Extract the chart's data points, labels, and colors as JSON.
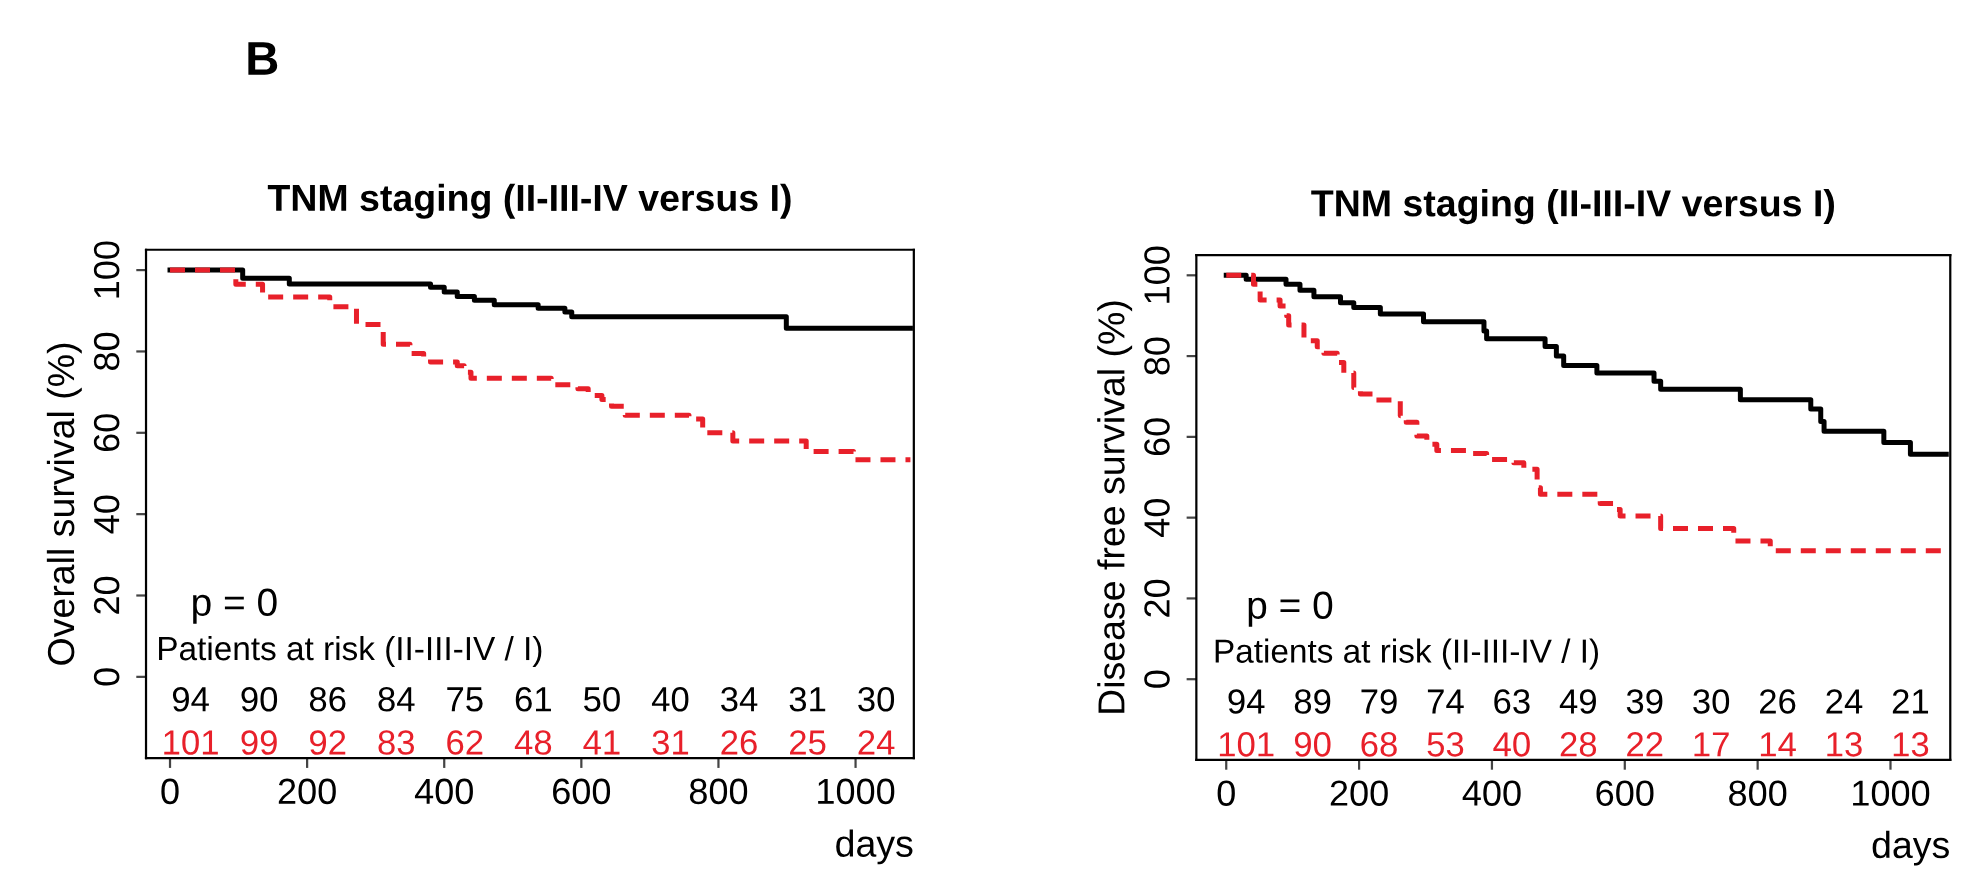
{
  "chart_data": [
    {
      "type": "step",
      "title": "TNM staging (II-III-IV versus I)",
      "xlabel": "days",
      "ylabel": "Overall survival (%)",
      "xlim": [
        -35,
        1085
      ],
      "ylim": [
        -20,
        105
      ],
      "xticks": [
        0,
        200,
        400,
        600,
        800,
        1000
      ],
      "yticks": [
        0,
        20,
        40,
        60,
        80,
        100
      ],
      "grid": false,
      "series": [
        {
          "color": "#000000",
          "line_style": "solid",
          "x": [
            0,
            106,
            174,
            380,
            400,
            419,
            444,
            473,
            537,
            576,
            586,
            899,
            1080
          ],
          "values": [
            100,
            98,
            96.6,
            95.8,
            94.6,
            93.5,
            92.6,
            91.5,
            90.6,
            89.7,
            88.5,
            85.7,
            85.7
          ]
        },
        {
          "color": "#e8202a",
          "line_style": "dashed",
          "x": [
            0,
            96,
            135,
            233,
            272,
            311,
            350,
            370,
            380,
            419,
            429,
            439,
            556,
            595,
            610,
            630,
            644,
            664,
            757,
            777,
            821,
            928,
            997,
            1080
          ],
          "values": [
            100,
            96.5,
            93.4,
            91,
            86.6,
            81.8,
            79.5,
            78.5,
            77.4,
            76.5,
            74.9,
            73.4,
            71.8,
            70.8,
            69.2,
            68.2,
            66.5,
            64.3,
            63.4,
            60,
            58,
            55.4,
            53.4,
            53.4
          ]
        }
      ],
      "annotations": [
        "B",
        "p = 0",
        "Patients at risk (II-III-IV / I)",
        "94 90 86 84 75 61 50 40 34 31 30",
        "101 99 92 83 62 48 41 31 26 25 24"
      ]
    },
    {
      "type": "step",
      "title": "TNM staging (II-III-IV versus I)",
      "xlabel": "days",
      "ylabel": "Disease free survival (%)",
      "xlim": [
        -45,
        1090
      ],
      "ylim": [
        -20,
        105
      ],
      "xticks": [
        0,
        200,
        400,
        600,
        800,
        1000
      ],
      "yticks": [
        0,
        20,
        40,
        60,
        80,
        100
      ],
      "grid": false,
      "series": [
        {
          "color": "#000000",
          "line_style": "solid",
          "x": [
            0,
            30,
            90,
            111,
            132,
            172,
            192,
            232,
            297,
            388,
            392,
            480,
            497,
            508,
            558,
            644,
            654,
            774,
            880,
            895,
            900,
            990,
            1030,
            1084
          ],
          "values": [
            100,
            99,
            97.8,
            96.3,
            94.7,
            93.2,
            92,
            90.4,
            88.5,
            86.2,
            84.3,
            82.4,
            80,
            77.7,
            75.8,
            73.8,
            71.8,
            69.2,
            66.9,
            63.8,
            61.4,
            58.6,
            55.7,
            55.7
          ]
        },
        {
          "color": "#e8202a",
          "line_style": "dashed",
          "x": [
            0,
            41,
            51,
            81,
            91,
            94,
            117,
            137,
            147,
            167,
            177,
            192,
            202,
            222,
            262,
            271,
            287,
            302,
            317,
            362,
            392,
            433,
            448,
            468,
            473,
            563,
            583,
            593,
            654,
            764,
            819,
            1084
          ],
          "values": [
            100,
            97.8,
            93.9,
            92.4,
            90,
            87.7,
            83.8,
            82.3,
            80.7,
            78.4,
            75.8,
            72.2,
            70.6,
            69.1,
            65.2,
            63.6,
            60.2,
            58.2,
            56.6,
            55.9,
            54.4,
            53.6,
            52,
            47.4,
            45.8,
            43.5,
            42,
            40.4,
            37.3,
            34.2,
            31.8,
            31.8
          ]
        }
      ],
      "annotations": [
        "p = 0",
        "Patients at risk (II-III-IV / I)",
        "94 89 79 74 63 49 39 30 26 24 21",
        "101 90 68 53 40 28 22 17 14 13 13"
      ]
    }
  ]
}
